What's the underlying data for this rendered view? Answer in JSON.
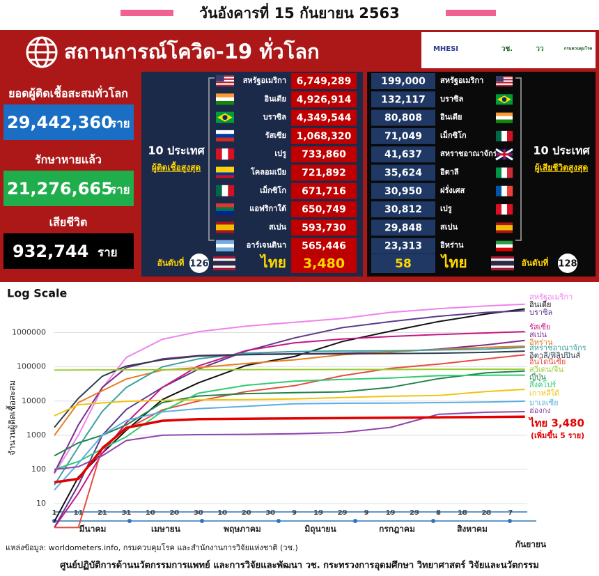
{
  "header": {
    "title": "วันอังคารที่ 15 กันยายน 2563"
  },
  "banner": {
    "title": "สถานการณ์โควิด-19 ทั่วโลก",
    "logos": [
      "MHESI",
      "วช.",
      "วว",
      "กรมควบคุมโรค"
    ]
  },
  "stats": [
    {
      "label": "ยอดผู้ติดเชื้อสะสมทั่วโลก",
      "value": "29,442,360",
      "unit": "ราย"
    },
    {
      "label": "รักษาหายแล้ว",
      "value": "21,276,665",
      "unit": "ราย"
    },
    {
      "label": "เสียชีวิต",
      "value": "932,744",
      "unit": "ราย"
    }
  ],
  "infected_top10": {
    "heading": "10 ประเทศ",
    "subheading": "ผู้ติดเชื้อสูงสุด",
    "rows": [
      {
        "country": "สหรัฐอเมริกา",
        "value": "6,749,289"
      },
      {
        "country": "อินเดีย",
        "value": "4,926,914"
      },
      {
        "country": "บราซิล",
        "value": "4,349,544"
      },
      {
        "country": "รัสเซีย",
        "value": "1,068,320"
      },
      {
        "country": "เปรู",
        "value": "733,860"
      },
      {
        "country": "โคลอมเบีย",
        "value": "721,892"
      },
      {
        "country": "เม็กซิโก",
        "value": "671,716"
      },
      {
        "country": "แอฟริกาใต้",
        "value": "650,749"
      },
      {
        "country": "สเปน",
        "value": "593,730"
      },
      {
        "country": "อาร์เจนตินา",
        "value": "565,446"
      }
    ],
    "rank_label": "อันดับที่",
    "rank": "126",
    "thai_name": "ไทย",
    "thai_value": "3,480"
  },
  "deaths_top10": {
    "heading": "10 ประเทศ",
    "subheading": "ผู้เสียชีวิตสูงสุด",
    "rows": [
      {
        "country": "สหรัฐอเมริกา",
        "value": "199,000"
      },
      {
        "country": "บราซิล",
        "value": "132,117"
      },
      {
        "country": "อินเดีย",
        "value": "80,808"
      },
      {
        "country": "เม็กซิโก",
        "value": "71,049"
      },
      {
        "country": "สหราชอาณาจักร",
        "value": "41,637"
      },
      {
        "country": "อิตาลี",
        "value": "35,624"
      },
      {
        "country": "ฝรั่งเศส",
        "value": "30,950"
      },
      {
        "country": "เปรู",
        "value": "30,812"
      },
      {
        "country": "สเปน",
        "value": "29,848"
      },
      {
        "country": "อิหร่าน",
        "value": "23,313"
      }
    ],
    "rank_label": "อันดับที่",
    "rank": "128",
    "thai_name": "ไทย",
    "thai_value": "58"
  },
  "chart_data": {
    "type": "line",
    "title": "Log Scale",
    "y_label": "จำนวนผู้ติดเชื้อสะสม",
    "log_scale": true,
    "grid": true,
    "x": [
      0,
      10,
      20,
      30,
      45,
      60,
      80,
      100,
      120,
      140,
      160,
      180,
      196
    ],
    "xlim": [
      0,
      197
    ],
    "xticks": [
      {
        "value": 0,
        "label": "1"
      },
      {
        "value": 10,
        "label": "11"
      },
      {
        "value": 20,
        "label": "21"
      },
      {
        "value": 30,
        "label": "31"
      },
      {
        "value": 40,
        "label": "10"
      },
      {
        "value": 50,
        "label": "20"
      },
      {
        "value": 60,
        "label": "30"
      },
      {
        "value": 70,
        "label": "10"
      },
      {
        "value": 80,
        "label": "20"
      },
      {
        "value": 90,
        "label": "30"
      },
      {
        "value": 100,
        "label": "9"
      },
      {
        "value": 110,
        "label": "19"
      },
      {
        "value": 120,
        "label": "29"
      },
      {
        "value": 130,
        "label": "9"
      },
      {
        "value": 140,
        "label": "19"
      },
      {
        "value": 150,
        "label": "29"
      },
      {
        "value": 160,
        "label": "8"
      },
      {
        "value": 170,
        "label": "18"
      },
      {
        "value": 180,
        "label": "28"
      },
      {
        "value": 190,
        "label": "7"
      }
    ],
    "months": [
      "มีนาคม",
      "เมษายน",
      "พฤษภาคม",
      "มิถุนายน",
      "กรกฎาคม",
      "สิงหาคม",
      "กันยายน"
    ],
    "ylim": [
      6,
      30000000
    ],
    "yticks": [
      10,
      100,
      1000,
      10000,
      100000,
      1000000
    ],
    "series": [
      {
        "name": "สหรัฐอเมริกา",
        "color": "#ee82ee",
        "values": [
          75,
          1000,
          24000,
          188000,
          640000,
          1060000,
          1550000,
          2000000,
          2600000,
          3900000,
          5000000,
          6000000,
          6749289
        ]
      },
      {
        "name": "อินเดีย",
        "color": "#111111",
        "values": [
          3,
          60,
          300,
          1400,
          11000,
          34000,
          110000,
          200000,
          550000,
          1100000,
          2100000,
          3500000,
          4926914
        ]
      },
      {
        "name": "บราซิล",
        "color": "#5b3a8c",
        "values": [
          2,
          35,
          1000,
          5700,
          25000,
          85000,
          290000,
          700000,
          1400000,
          2100000,
          3000000,
          3900000,
          4349544
        ]
      },
      {
        "name": "รัสเซีย",
        "color": "#c71585",
        "values": [
          2,
          20,
          300,
          2300,
          25000,
          106000,
          300000,
          500000,
          650000,
          770000,
          880000,
          980000,
          1068320
        ]
      },
      {
        "name": "สเปน",
        "color": "#7b2d8e",
        "values": [
          80,
          2000,
          25000,
          95000,
          170000,
          213000,
          232000,
          240000,
          250000,
          270000,
          330000,
          440000,
          593730
        ]
      },
      {
        "name": "อิหร่าน",
        "color": "#e67e22",
        "values": [
          980,
          9000,
          20000,
          44000,
          80000,
          95000,
          125000,
          160000,
          225000,
          275000,
          320000,
          370000,
          402000
        ]
      },
      {
        "name": "สหราชอาณาจักร",
        "color": "#3aa0a0",
        "values": [
          35,
          450,
          5000,
          25000,
          100000,
          170000,
          250000,
          280000,
          290000,
          295000,
          310000,
          330000,
          370000
        ]
      },
      {
        "name": "อิตาลี/ฟิลิปปินส์",
        "color": "#2c3e50",
        "values": [
          1700,
          12000,
          53000,
          105000,
          160000,
          205000,
          227000,
          235000,
          240000,
          244000,
          250000,
          265000,
          288000
        ]
      },
      {
        "name": "อินโดนีเซีย",
        "color": "#e74c3c",
        "values": [
          2,
          2,
          450,
          1500,
          5500,
          10000,
          19000,
          28000,
          55000,
          90000,
          120000,
          170000,
          225000
        ]
      },
      {
        "name": "สวีเดน/จีน",
        "color": "#9acd32",
        "values": [
          80000,
          81000,
          81300,
          81500,
          82000,
          82800,
          82900,
          83000,
          83500,
          83700,
          84500,
          85000,
          85200
        ]
      },
      {
        "name": "ญี่ปุ่น",
        "color": "#1e8449",
        "values": [
          250,
          600,
          1000,
          2000,
          9000,
          14000,
          16500,
          17500,
          18500,
          25000,
          45000,
          67000,
          75000
        ]
      },
      {
        "name": "สิงคโปร์",
        "color": "#2ecc71",
        "values": [
          100,
          170,
          400,
          900,
          5000,
          17000,
          29000,
          38000,
          43000,
          47000,
          55000,
          56500,
          57000
        ]
      },
      {
        "name": "เกาหลีใต้",
        "color": "#f1c40f",
        "values": [
          3700,
          7800,
          8800,
          9800,
          10500,
          10800,
          11000,
          11500,
          12700,
          13800,
          14500,
          19000,
          22000
        ]
      },
      {
        "name": "มาเลเซีย",
        "color": "#5dade2",
        "values": [
          25,
          150,
          1000,
          2700,
          4800,
          6000,
          7000,
          8300,
          8600,
          8700,
          9000,
          9300,
          9900
        ]
      },
      {
        "name": "ฮ่องกง",
        "color": "#8e44ad",
        "values": [
          100,
          120,
          250,
          700,
          1000,
          1040,
          1060,
          1100,
          1200,
          1700,
          4100,
          4700,
          4900
        ]
      },
      {
        "name": "ไทย 3,480",
        "color": "#e00000",
        "values": [
          42,
          53,
          410,
          1650,
          2650,
          2950,
          3030,
          3100,
          3170,
          3240,
          3330,
          3410,
          3480
        ]
      }
    ],
    "annotation": "(เพิ่มขึ้น 5 ราย)"
  },
  "footer": {
    "source": "แหล่งข้อมูล: worldometers.info, กรมควบคุมโรค และสำนักงานการวิจัยแห่งชาติ (วช.)",
    "credit": "ศูนย์ปฏิบัติการด้านนวัตกรรมการแพทย์ และการวิจัยและพัฒนา  วช.  กระทรวงการอุดมศึกษา วิทยาศาสตร์ วิจัยและนวัตกรรม"
  }
}
